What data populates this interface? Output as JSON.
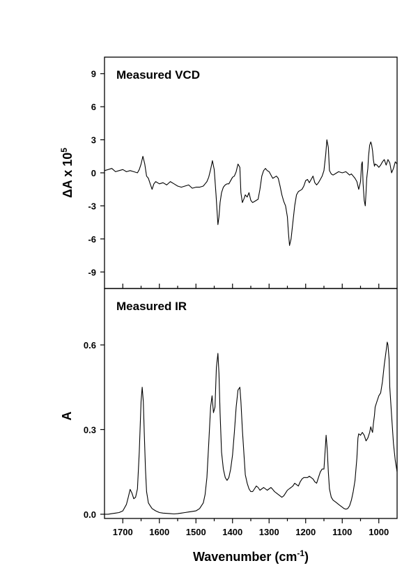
{
  "chart_data": [
    {
      "type": "line",
      "title": "Measured VCD",
      "ylabel_main": "ΔA x 10",
      "ylabel_exponent": "5",
      "xlim": [
        1750,
        950
      ],
      "ylim": [
        -10.5,
        10.5
      ],
      "yticks": [
        -9,
        -6,
        -3,
        0,
        3,
        6,
        9
      ],
      "ytick_labels": [
        "-9",
        "-6",
        "-3",
        "0",
        "3",
        "6",
        "9"
      ],
      "grid": false,
      "series": [
        {
          "x": [
            1750,
            1740,
            1730,
            1720,
            1710,
            1700,
            1690,
            1680,
            1670,
            1660,
            1655,
            1650,
            1645,
            1640,
            1635,
            1630,
            1625,
            1620,
            1615,
            1610,
            1600,
            1590,
            1580,
            1570,
            1560,
            1550,
            1540,
            1530,
            1520,
            1510,
            1500,
            1490,
            1480,
            1475,
            1470,
            1465,
            1460,
            1455,
            1450,
            1445,
            1440,
            1437,
            1434,
            1430,
            1425,
            1420,
            1415,
            1410,
            1400,
            1395,
            1390,
            1385,
            1380,
            1377,
            1373,
            1368,
            1365,
            1360,
            1355,
            1350,
            1345,
            1340,
            1335,
            1330,
            1325,
            1320,
            1315,
            1310,
            1305,
            1300,
            1290,
            1280,
            1275,
            1270,
            1265,
            1260,
            1255,
            1250,
            1247,
            1244,
            1240,
            1235,
            1230,
            1225,
            1220,
            1215,
            1210,
            1205,
            1200,
            1195,
            1190,
            1185,
            1180,
            1175,
            1170,
            1165,
            1160,
            1155,
            1150,
            1145,
            1142,
            1138,
            1135,
            1130,
            1125,
            1120,
            1115,
            1110,
            1100,
            1090,
            1080,
            1075,
            1070,
            1065,
            1060,
            1055,
            1050,
            1047,
            1045,
            1043,
            1040,
            1037,
            1035,
            1033,
            1030,
            1028,
            1025,
            1022,
            1020,
            1017,
            1015,
            1012,
            1010,
            1005,
            1000,
            995,
            990,
            985,
            980,
            975,
            970,
            965,
            960,
            955,
            950
          ],
          "y": [
            0.2,
            0.3,
            0.4,
            0.1,
            0.2,
            0.3,
            0.1,
            0.2,
            0.1,
            0.0,
            0.3,
            0.8,
            1.5,
            0.8,
            -0.3,
            -0.5,
            -1.0,
            -1.5,
            -1.0,
            -0.8,
            -1.0,
            -0.9,
            -1.1,
            -0.8,
            -1.0,
            -1.2,
            -1.3,
            -1.2,
            -1.1,
            -1.4,
            -1.3,
            -1.3,
            -1.2,
            -1.0,
            -0.8,
            -0.4,
            0.3,
            1.1,
            0.3,
            -2.0,
            -4.7,
            -4.0,
            -2.7,
            -1.8,
            -1.3,
            -1.1,
            -1.0,
            -1.0,
            -0.4,
            -0.3,
            0.1,
            0.8,
            0.5,
            -1.8,
            -2.7,
            -2.3,
            -2.0,
            -2.2,
            -1.8,
            -2.5,
            -2.7,
            -2.6,
            -2.5,
            -2.4,
            -1.5,
            -0.3,
            0.2,
            0.4,
            0.2,
            0.1,
            -0.5,
            -0.3,
            -0.5,
            -1.2,
            -2.0,
            -2.6,
            -3.0,
            -4.0,
            -5.5,
            -6.6,
            -6.0,
            -4.5,
            -3.0,
            -2.0,
            -1.7,
            -1.6,
            -1.5,
            -1.2,
            -0.7,
            -0.6,
            -0.9,
            -0.6,
            -0.3,
            -0.9,
            -1.1,
            -0.9,
            -0.6,
            -0.3,
            0.2,
            1.7,
            3.0,
            2.3,
            0.2,
            -0.1,
            -0.2,
            -0.1,
            0.0,
            0.1,
            0.0,
            0.1,
            -0.2,
            -0.1,
            -0.3,
            -0.5,
            -0.8,
            -1.5,
            -0.8,
            0.8,
            1.0,
            -1.0,
            -2.5,
            -3.0,
            -1.8,
            -0.5,
            0.4,
            1.5,
            2.5,
            2.8,
            2.6,
            2.0,
            1.2,
            0.6,
            0.8,
            0.7,
            0.5,
            0.7,
            1.0,
            1.2,
            0.7,
            1.2,
            0.9,
            0.0,
            0.4,
            1.0,
            0.8
          ]
        }
      ]
    },
    {
      "type": "line",
      "title": "Measured IR",
      "xlabel_main": "Wavenumber (cm",
      "xlabel_exponent": "-1",
      "xlabel_close": ")",
      "ylabel": "A",
      "xlim": [
        1750,
        950
      ],
      "ylim": [
        -0.015,
        0.8
      ],
      "xticks": [
        1700,
        1650,
        1600,
        1550,
        1500,
        1450,
        1400,
        1350,
        1300,
        1250,
        1200,
        1150,
        1100,
        1050,
        1000,
        950
      ],
      "xtick_labels": [
        "1700",
        "1600",
        "1500",
        "1400",
        "1300",
        "1200",
        "1100",
        "1000"
      ],
      "xtick_label_values": [
        1700,
        1600,
        1500,
        1400,
        1300,
        1200,
        1100,
        1000
      ],
      "yticks": [
        0.0,
        0.3,
        0.6
      ],
      "ytick_labels": [
        "0.0",
        "0.3",
        "0.6"
      ],
      "grid": false,
      "series": [
        {
          "x": [
            1750,
            1740,
            1730,
            1720,
            1710,
            1700,
            1690,
            1685,
            1680,
            1675,
            1670,
            1665,
            1660,
            1655,
            1650,
            1647,
            1644,
            1641,
            1638,
            1635,
            1630,
            1625,
            1620,
            1610,
            1600,
            1590,
            1580,
            1570,
            1560,
            1550,
            1540,
            1530,
            1520,
            1510,
            1500,
            1490,
            1480,
            1475,
            1470,
            1465,
            1460,
            1456,
            1452,
            1448,
            1444,
            1440,
            1437,
            1434,
            1430,
            1425,
            1420,
            1415,
            1410,
            1405,
            1400,
            1395,
            1390,
            1385,
            1380,
            1377,
            1373,
            1368,
            1365,
            1360,
            1355,
            1350,
            1345,
            1340,
            1335,
            1330,
            1325,
            1320,
            1315,
            1310,
            1305,
            1300,
            1295,
            1290,
            1285,
            1280,
            1275,
            1270,
            1265,
            1260,
            1255,
            1250,
            1245,
            1240,
            1235,
            1230,
            1225,
            1220,
            1215,
            1210,
            1205,
            1200,
            1195,
            1190,
            1185,
            1180,
            1175,
            1170,
            1165,
            1160,
            1155,
            1150,
            1147,
            1144,
            1141,
            1138,
            1135,
            1130,
            1125,
            1120,
            1115,
            1110,
            1105,
            1100,
            1095,
            1090,
            1085,
            1080,
            1075,
            1070,
            1065,
            1060,
            1057,
            1055,
            1050,
            1045,
            1040,
            1035,
            1030,
            1025,
            1022,
            1020,
            1017,
            1015,
            1012,
            1010,
            1005,
            1000,
            995,
            990,
            985,
            980,
            977,
            975,
            972,
            970,
            965,
            960,
            955,
            950
          ],
          "y": [
            0.0,
            0.0,
            0.002,
            0.004,
            0.006,
            0.012,
            0.035,
            0.06,
            0.088,
            0.075,
            0.055,
            0.06,
            0.09,
            0.22,
            0.4,
            0.45,
            0.4,
            0.28,
            0.16,
            0.08,
            0.04,
            0.03,
            0.02,
            0.012,
            0.006,
            0.004,
            0.003,
            0.002,
            0.001,
            0.002,
            0.004,
            0.006,
            0.008,
            0.01,
            0.012,
            0.02,
            0.04,
            0.07,
            0.13,
            0.25,
            0.38,
            0.42,
            0.36,
            0.38,
            0.52,
            0.57,
            0.5,
            0.36,
            0.22,
            0.16,
            0.13,
            0.12,
            0.13,
            0.16,
            0.21,
            0.29,
            0.38,
            0.44,
            0.45,
            0.4,
            0.3,
            0.2,
            0.14,
            0.11,
            0.09,
            0.08,
            0.08,
            0.09,
            0.1,
            0.095,
            0.085,
            0.09,
            0.095,
            0.09,
            0.085,
            0.09,
            0.095,
            0.088,
            0.08,
            0.075,
            0.07,
            0.065,
            0.06,
            0.065,
            0.075,
            0.085,
            0.09,
            0.095,
            0.1,
            0.11,
            0.105,
            0.1,
            0.115,
            0.125,
            0.13,
            0.13,
            0.13,
            0.135,
            0.13,
            0.125,
            0.115,
            0.11,
            0.13,
            0.15,
            0.16,
            0.16,
            0.22,
            0.28,
            0.23,
            0.15,
            0.09,
            0.06,
            0.05,
            0.045,
            0.04,
            0.035,
            0.03,
            0.025,
            0.02,
            0.018,
            0.02,
            0.03,
            0.05,
            0.08,
            0.12,
            0.2,
            0.27,
            0.285,
            0.28,
            0.29,
            0.28,
            0.26,
            0.27,
            0.29,
            0.31,
            0.3,
            0.29,
            0.32,
            0.35,
            0.38,
            0.4,
            0.42,
            0.43,
            0.47,
            0.53,
            0.58,
            0.61,
            0.6,
            0.55,
            0.45,
            0.35,
            0.25,
            0.19,
            0.15
          ]
        }
      ]
    }
  ]
}
